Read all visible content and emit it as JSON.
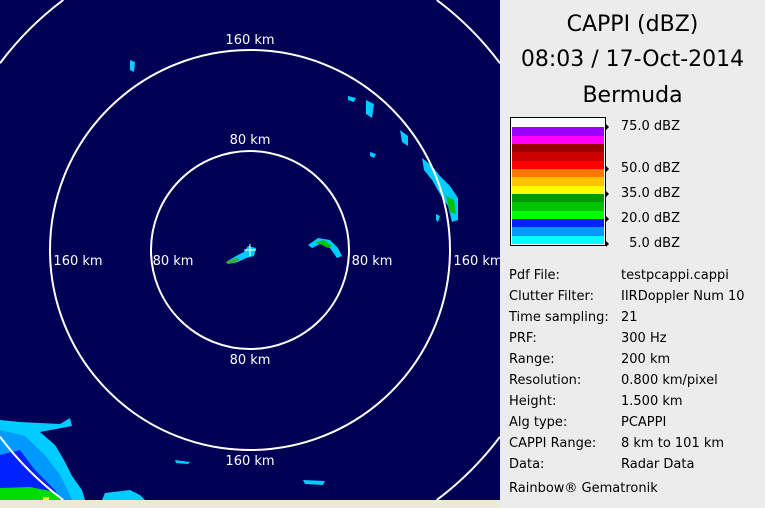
{
  "panel": {
    "product": "CAPPI (dBZ)",
    "datetime": "08:03 / 17-Oct-2014",
    "site": "Bermuda",
    "legend": {
      "colors": [
        "#ffffff",
        "#9900ff",
        "#ff00ff",
        "#990000",
        "#cc0000",
        "#ff0000",
        "#ff7700",
        "#ffc400",
        "#ffff00",
        "#009900",
        "#00c400",
        "#00ff00",
        "#0022ff",
        "#0099ff",
        "#00ffff"
      ],
      "ticks": [
        "75.0 dBZ",
        "50.0 dBZ",
        "35.0 dBZ",
        "20.0 dBZ",
        "5.0 dBZ"
      ]
    },
    "info": [
      {
        "key": "Pdf File:",
        "value": "testpcappi.cappi"
      },
      {
        "key": "Clutter Filter:",
        "value": "IIRDoppler Num 10"
      },
      {
        "key": "Time sampling:",
        "value": "21"
      },
      {
        "key": "PRF:",
        "value": "300 Hz"
      },
      {
        "key": "Range:",
        "value": "200 km"
      },
      {
        "key": "Resolution:",
        "value": "0.800 km/pixel"
      },
      {
        "key": "Height:",
        "value": "1.500 km"
      },
      {
        "key": "Alg type:",
        "value": "PCAPPI"
      },
      {
        "key": "CAPPI Range:",
        "value": "8 km to 101 km"
      },
      {
        "key": "Data:",
        "value": "Radar Data"
      }
    ],
    "footer": "Rainbow® Gematronik"
  },
  "map": {
    "ring_labels": {
      "inner": "80 km",
      "outer": "160 km"
    },
    "background": "#000055"
  }
}
